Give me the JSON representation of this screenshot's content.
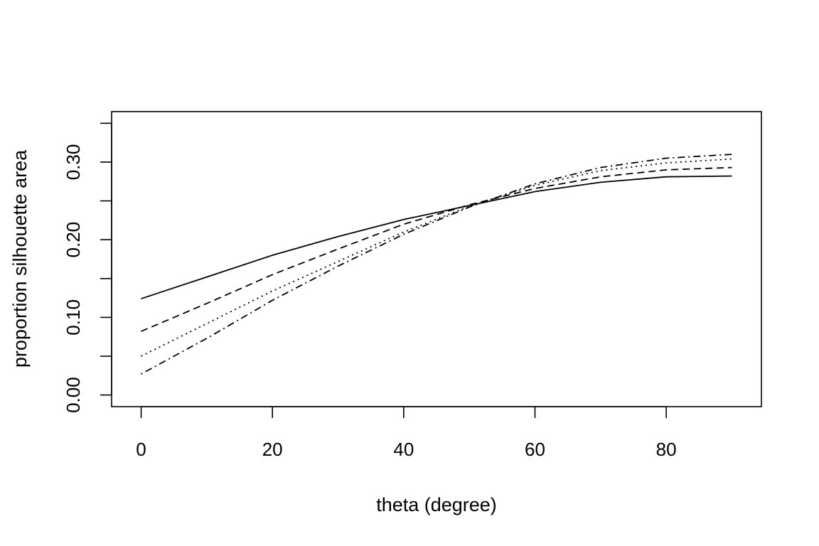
{
  "chart_data": {
    "type": "line",
    "title": "",
    "xlabel": "theta (degree)",
    "ylabel": "proportion silhouette area",
    "xlim": [
      -4.5,
      94.5
    ],
    "ylim": [
      -0.015,
      0.365
    ],
    "xticks": [
      0,
      20,
      40,
      60,
      80
    ],
    "xtick_labels": [
      "0",
      "20",
      "40",
      "60",
      "80"
    ],
    "yticks": [
      0.0,
      0.05,
      0.1,
      0.15,
      0.2,
      0.25,
      0.3,
      0.35
    ],
    "ytick_labels": [
      "0.00",
      "",
      "0.10",
      "",
      "0.20",
      "",
      "0.30",
      ""
    ],
    "grid": false,
    "legend": false,
    "x": [
      0,
      10,
      20,
      30,
      40,
      50,
      60,
      70,
      80,
      90
    ],
    "series": [
      {
        "line_style": "solid",
        "values": [
          0.124,
          0.152,
          0.18,
          0.204,
          0.226,
          0.244,
          0.262,
          0.274,
          0.281,
          0.282
        ]
      },
      {
        "line_style": "dashed",
        "values": [
          0.082,
          0.118,
          0.155,
          0.188,
          0.22,
          0.245,
          0.266,
          0.281,
          0.29,
          0.293
        ]
      },
      {
        "line_style": "dotted",
        "values": [
          0.05,
          0.092,
          0.134,
          0.172,
          0.21,
          0.243,
          0.27,
          0.289,
          0.299,
          0.304
        ]
      },
      {
        "line_style": "dotdash",
        "values": [
          0.027,
          0.073,
          0.122,
          0.166,
          0.207,
          0.242,
          0.272,
          0.293,
          0.305,
          0.31
        ]
      }
    ]
  }
}
